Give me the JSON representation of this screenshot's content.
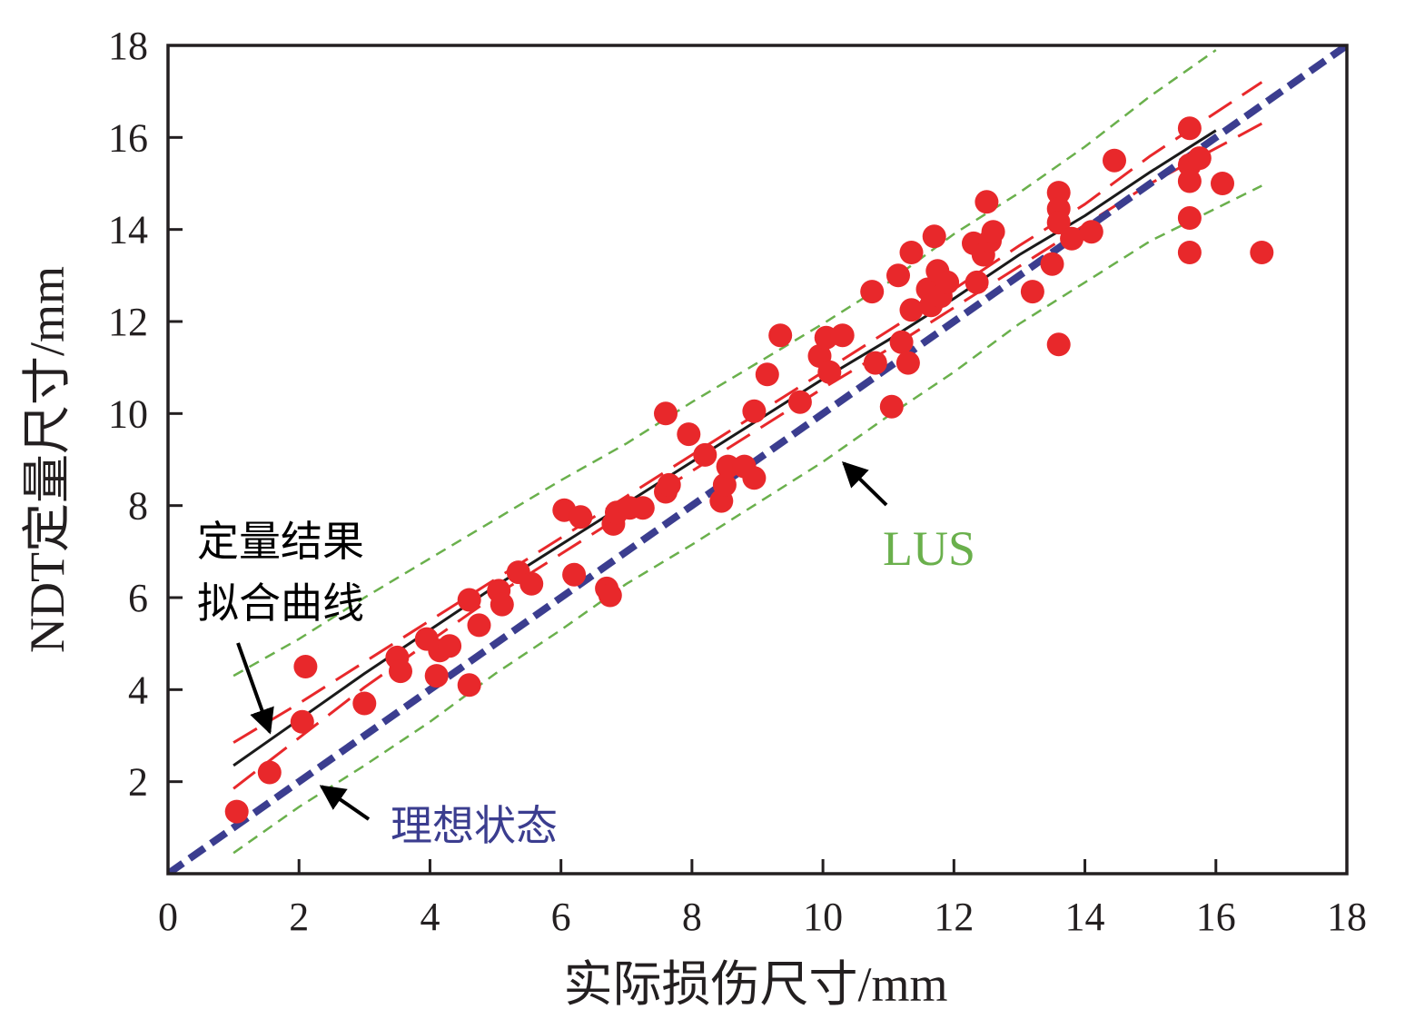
{
  "chart_data": {
    "type": "scatter",
    "title": "",
    "xlabel": "实际损伤尺寸/mm",
    "ylabel": "NDT定量尺寸/mm",
    "xlim": [
      0,
      18
    ],
    "ylim": [
      0,
      18
    ],
    "x_ticks": [
      0,
      2,
      4,
      6,
      8,
      10,
      12,
      14,
      16,
      18
    ],
    "y_ticks": [
      2,
      4,
      6,
      8,
      10,
      12,
      14,
      16,
      18
    ],
    "grid": false,
    "colors": {
      "points": "#e8282b",
      "fit_line": "#1a1a1a",
      "confidence": "#e8282b",
      "lus_band": "#6ab04c",
      "ideal": "#3b3d8f",
      "axis": "#231f20"
    },
    "series": [
      {
        "name": "measurements",
        "kind": "scatter",
        "points": [
          [
            1.05,
            1.35
          ],
          [
            1.55,
            2.2
          ],
          [
            2.05,
            3.3
          ],
          [
            2.1,
            4.5
          ],
          [
            3.0,
            3.7
          ],
          [
            3.5,
            4.7
          ],
          [
            3.55,
            4.4
          ],
          [
            3.95,
            5.1
          ],
          [
            4.1,
            4.3
          ],
          [
            4.15,
            4.85
          ],
          [
            4.3,
            4.95
          ],
          [
            4.6,
            4.1
          ],
          [
            4.6,
            5.95
          ],
          [
            4.75,
            5.4
          ],
          [
            5.05,
            6.15
          ],
          [
            5.1,
            5.85
          ],
          [
            5.35,
            6.55
          ],
          [
            5.55,
            6.3
          ],
          [
            6.05,
            7.9
          ],
          [
            6.2,
            6.5
          ],
          [
            6.3,
            7.75
          ],
          [
            6.7,
            6.2
          ],
          [
            6.75,
            6.05
          ],
          [
            6.8,
            7.6
          ],
          [
            6.85,
            7.85
          ],
          [
            7.05,
            7.95
          ],
          [
            7.25,
            7.95
          ],
          [
            7.6,
            8.3
          ],
          [
            7.65,
            8.45
          ],
          [
            7.6,
            10.0
          ],
          [
            7.95,
            9.55
          ],
          [
            8.2,
            9.1
          ],
          [
            8.45,
            8.1
          ],
          [
            8.5,
            8.45
          ],
          [
            8.55,
            8.85
          ],
          [
            8.8,
            8.85
          ],
          [
            8.95,
            8.6
          ],
          [
            8.95,
            10.05
          ],
          [
            9.15,
            10.85
          ],
          [
            9.35,
            11.7
          ],
          [
            9.65,
            10.25
          ],
          [
            9.95,
            11.25
          ],
          [
            10.05,
            11.65
          ],
          [
            10.1,
            10.9
          ],
          [
            10.3,
            11.7
          ],
          [
            10.75,
            12.65
          ],
          [
            10.8,
            11.1
          ],
          [
            11.05,
            10.15
          ],
          [
            11.15,
            13.0
          ],
          [
            11.2,
            11.55
          ],
          [
            11.3,
            11.1
          ],
          [
            11.35,
            13.5
          ],
          [
            11.35,
            12.25
          ],
          [
            11.6,
            12.7
          ],
          [
            11.65,
            12.35
          ],
          [
            11.7,
            13.85
          ],
          [
            11.75,
            13.1
          ],
          [
            11.8,
            12.55
          ],
          [
            11.9,
            12.85
          ],
          [
            12.3,
            13.7
          ],
          [
            12.35,
            12.85
          ],
          [
            12.45,
            13.45
          ],
          [
            12.5,
            14.6
          ],
          [
            12.55,
            13.75
          ],
          [
            12.6,
            13.95
          ],
          [
            13.2,
            12.65
          ],
          [
            13.5,
            13.25
          ],
          [
            13.6,
            11.5
          ],
          [
            13.6,
            14.8
          ],
          [
            13.6,
            14.45
          ],
          [
            13.6,
            14.15
          ],
          [
            13.8,
            13.8
          ],
          [
            14.1,
            13.95
          ],
          [
            14.45,
            15.5
          ],
          [
            15.6,
            16.2
          ],
          [
            15.6,
            15.4
          ],
          [
            15.6,
            15.05
          ],
          [
            15.6,
            14.25
          ],
          [
            15.6,
            13.5
          ],
          [
            15.75,
            15.55
          ],
          [
            16.1,
            15.0
          ],
          [
            16.7,
            13.5
          ]
        ]
      },
      {
        "name": "定量结果拟合曲线",
        "kind": "fit_line",
        "points": [
          [
            1.0,
            2.35
          ],
          [
            2.0,
            3.35
          ],
          [
            3.0,
            4.35
          ],
          [
            4.0,
            5.3
          ],
          [
            5.0,
            6.25
          ],
          [
            6.0,
            7.15
          ],
          [
            7.0,
            8.05
          ],
          [
            8.0,
            8.95
          ],
          [
            9.0,
            9.85
          ],
          [
            10.0,
            10.75
          ],
          [
            11.0,
            11.6
          ],
          [
            12.0,
            12.5
          ],
          [
            13.0,
            13.45
          ],
          [
            14.0,
            14.3
          ],
          [
            15.0,
            15.25
          ],
          [
            16.0,
            16.15
          ]
        ]
      },
      {
        "name": "fit_upper_confidence",
        "kind": "confidence",
        "points": [
          [
            1.0,
            2.85
          ],
          [
            2.0,
            3.7
          ],
          [
            3.0,
            4.6
          ],
          [
            4.0,
            5.5
          ],
          [
            5.0,
            6.4
          ],
          [
            6.0,
            7.3
          ],
          [
            7.0,
            8.2
          ],
          [
            8.0,
            9.1
          ],
          [
            9.0,
            10.0
          ],
          [
            10.0,
            10.9
          ],
          [
            11.0,
            11.8
          ],
          [
            12.0,
            12.7
          ],
          [
            13.0,
            13.65
          ],
          [
            14.0,
            14.55
          ],
          [
            15.0,
            15.6
          ],
          [
            16.7,
            17.2
          ]
        ]
      },
      {
        "name": "fit_lower_confidence",
        "kind": "confidence",
        "points": [
          [
            1.0,
            1.85
          ],
          [
            2.0,
            2.95
          ],
          [
            3.0,
            4.05
          ],
          [
            4.0,
            5.05
          ],
          [
            5.0,
            6.05
          ],
          [
            6.0,
            6.95
          ],
          [
            7.0,
            7.85
          ],
          [
            8.0,
            8.75
          ],
          [
            9.0,
            9.65
          ],
          [
            10.0,
            10.55
          ],
          [
            11.0,
            11.4
          ],
          [
            12.0,
            12.3
          ],
          [
            13.0,
            13.2
          ],
          [
            14.0,
            14.1
          ],
          [
            15.0,
            15.0
          ],
          [
            16.7,
            16.3
          ]
        ]
      },
      {
        "name": "LUS_upper",
        "kind": "lus_band",
        "points": [
          [
            1.0,
            4.3
          ],
          [
            2.0,
            5.1
          ],
          [
            3.0,
            6.0
          ],
          [
            4.0,
            6.85
          ],
          [
            5.0,
            7.7
          ],
          [
            6.0,
            8.55
          ],
          [
            7.0,
            9.35
          ],
          [
            8.0,
            10.25
          ],
          [
            9.0,
            11.1
          ],
          [
            10.0,
            11.95
          ],
          [
            11.0,
            12.85
          ],
          [
            12.0,
            13.9
          ],
          [
            13.0,
            14.8
          ],
          [
            14.0,
            15.8
          ],
          [
            15.0,
            16.9
          ],
          [
            16.0,
            17.9
          ]
        ]
      },
      {
        "name": "LUS_lower",
        "kind": "lus_band",
        "points": [
          [
            1.0,
            0.45
          ],
          [
            2.0,
            1.45
          ],
          [
            3.0,
            2.35
          ],
          [
            4.0,
            3.3
          ],
          [
            5.0,
            4.35
          ],
          [
            6.0,
            5.3
          ],
          [
            7.0,
            6.3
          ],
          [
            8.0,
            7.15
          ],
          [
            9.0,
            8.05
          ],
          [
            10.0,
            8.95
          ],
          [
            11.0,
            9.95
          ],
          [
            12.0,
            10.9
          ],
          [
            13.0,
            11.95
          ],
          [
            14.0,
            12.85
          ],
          [
            15.0,
            13.75
          ],
          [
            16.7,
            14.95
          ]
        ]
      },
      {
        "name": "理想状态",
        "kind": "ideal",
        "points": [
          [
            0.0,
            0.0
          ],
          [
            18.0,
            18.0
          ]
        ]
      }
    ],
    "annotations": [
      {
        "text": "定量结果",
        "kind": "fit_label_line1"
      },
      {
        "text": "拟合曲线",
        "kind": "fit_label_line2",
        "arrow_to": [
          1.6,
          2.95
        ]
      },
      {
        "text": "LUS",
        "kind": "lus_label",
        "arrow_to": [
          10.2,
          9.0
        ]
      },
      {
        "text": "理想状态",
        "kind": "ideal_label",
        "arrow_to": [
          2.2,
          2.0
        ]
      }
    ]
  }
}
